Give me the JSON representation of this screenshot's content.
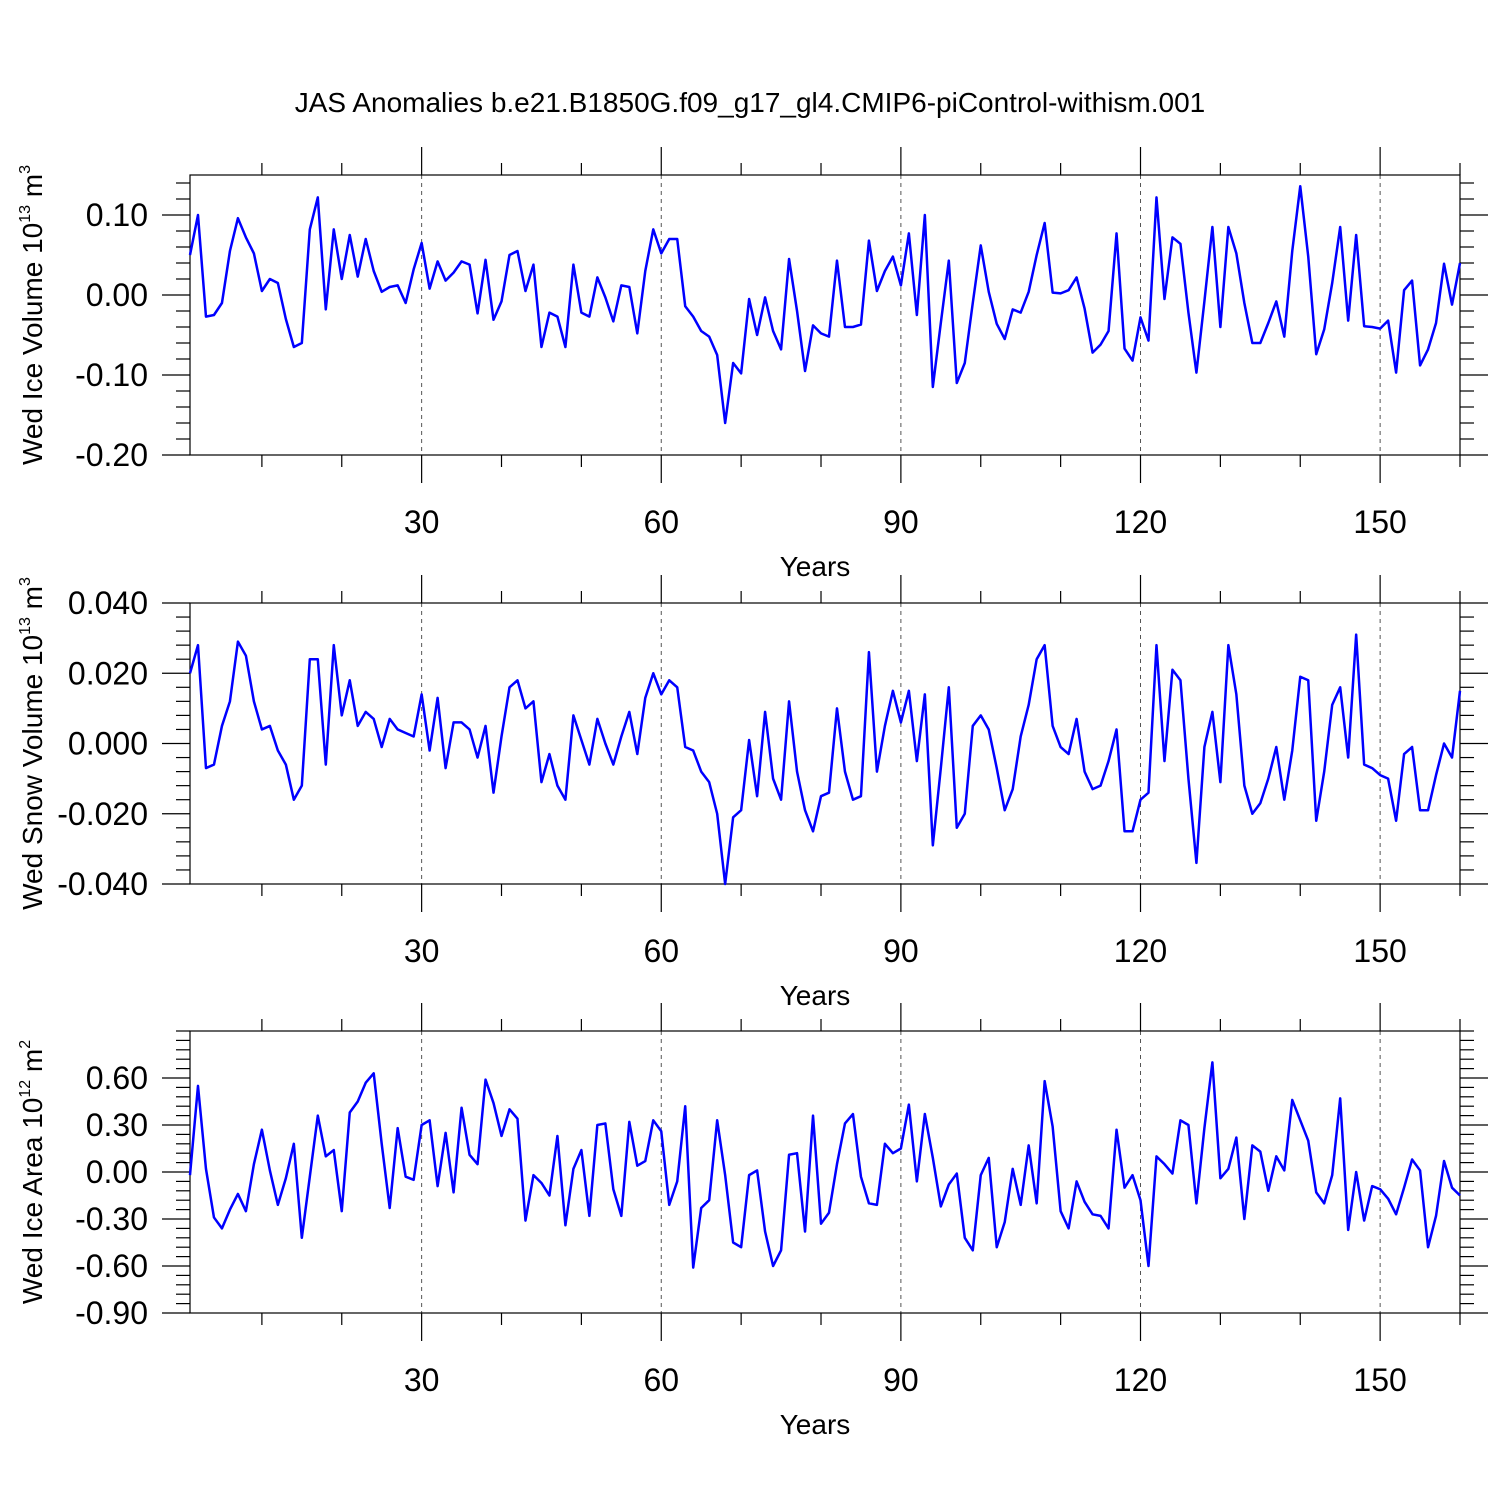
{
  "title": "JAS Anomalies b.e21.B1850G.f09_g17_gl4.CMIP6-piControl-withism.001",
  "chart_data": [
    {
      "type": "line",
      "name": "ice-volume",
      "ylabel_main": "Wed Ice Volume 10",
      "ylabel_exp": "13",
      "ylabel_unit": " m",
      "ylabel_unit_exp": "3",
      "xlabel": "Years",
      "xlim": [
        1,
        160
      ],
      "ylim": [
        -0.2,
        0.15
      ],
      "xticks": [
        30,
        60,
        90,
        120,
        150
      ],
      "xtick_labels": [
        "30",
        "60",
        "90",
        "120",
        "150"
      ],
      "yticks": [
        -0.2,
        -0.1,
        0.0,
        0.1
      ],
      "ytick_labels": [
        "-0.20",
        "-0.10",
        "0.00",
        "0.10"
      ],
      "color": "#0000ff",
      "x_start": 1,
      "values": [
        0.05,
        0.1,
        -0.027,
        -0.025,
        -0.01,
        0.055,
        0.096,
        0.072,
        0.052,
        0.005,
        0.02,
        0.015,
        -0.03,
        -0.065,
        -0.06,
        0.082,
        0.122,
        -0.018,
        0.082,
        0.02,
        0.075,
        0.023,
        0.07,
        0.03,
        0.004,
        0.01,
        0.012,
        -0.01,
        0.032,
        0.065,
        0.008,
        0.042,
        0.018,
        0.028,
        0.042,
        0.038,
        -0.023,
        0.044,
        -0.031,
        -0.008,
        0.05,
        0.055,
        0.005,
        0.038,
        -0.065,
        -0.022,
        -0.027,
        -0.065,
        0.038,
        -0.022,
        -0.027,
        0.022,
        -0.003,
        -0.033,
        0.012,
        0.01,
        -0.048,
        0.03,
        0.082,
        0.052,
        0.07,
        0.07,
        -0.014,
        -0.027,
        -0.045,
        -0.052,
        -0.075,
        -0.16,
        -0.085,
        -0.098,
        -0.005,
        -0.05,
        -0.003,
        -0.045,
        -0.068,
        0.045,
        -0.02,
        -0.095,
        -0.038,
        -0.048,
        -0.052,
        0.043,
        -0.04,
        -0.04,
        -0.037,
        0.068,
        0.005,
        0.03,
        0.048,
        0.012,
        0.077,
        -0.025,
        0.1,
        -0.115,
        -0.035,
        0.043,
        -0.11,
        -0.085,
        -0.01,
        0.062,
        0.004,
        -0.036,
        -0.055,
        -0.018,
        -0.022,
        0.004,
        0.05,
        0.09,
        0.003,
        0.002,
        0.006,
        0.022,
        -0.017,
        -0.072,
        -0.062,
        -0.045,
        0.077,
        -0.067,
        -0.082,
        -0.028,
        -0.057,
        0.122,
        -0.005,
        0.072,
        0.064,
        -0.022,
        -0.097,
        -0.008,
        0.085,
        -0.04,
        0.085,
        0.052,
        -0.01,
        -0.06,
        -0.06,
        -0.035,
        -0.008,
        -0.052,
        0.055,
        0.136,
        0.048,
        -0.074,
        -0.043,
        0.015,
        0.085,
        -0.032,
        0.075,
        -0.039,
        -0.04,
        -0.042,
        -0.032,
        -0.097,
        0.006,
        0.018,
        -0.088,
        -0.068,
        -0.035,
        0.039,
        -0.012,
        0.04
      ]
    },
    {
      "type": "line",
      "name": "snow-volume",
      "ylabel_main": "Wed Snow Volume 10",
      "ylabel_exp": "13",
      "ylabel_unit": " m",
      "ylabel_unit_exp": "3",
      "xlabel": "Years",
      "xlim": [
        1,
        160
      ],
      "ylim": [
        -0.04,
        0.04
      ],
      "xticks": [
        30,
        60,
        90,
        120,
        150
      ],
      "xtick_labels": [
        "30",
        "60",
        "90",
        "120",
        "150"
      ],
      "yticks": [
        -0.04,
        -0.02,
        0.0,
        0.02,
        0.04
      ],
      "ytick_labels": [
        "-0.040",
        "-0.020",
        "0.000",
        "0.020",
        "0.040"
      ],
      "color": "#0000ff",
      "x_start": 1,
      "values": [
        0.02,
        0.028,
        -0.007,
        -0.006,
        0.005,
        0.012,
        0.029,
        0.025,
        0.012,
        0.004,
        0.005,
        -0.002,
        -0.006,
        -0.016,
        -0.012,
        0.024,
        0.024,
        -0.006,
        0.028,
        0.008,
        0.018,
        0.005,
        0.009,
        0.007,
        -0.001,
        0.007,
        0.004,
        0.003,
        0.002,
        0.014,
        -0.002,
        0.013,
        -0.007,
        0.006,
        0.006,
        0.004,
        -0.004,
        0.005,
        -0.014,
        0.002,
        0.016,
        0.018,
        0.01,
        0.012,
        -0.011,
        -0.003,
        -0.012,
        -0.016,
        0.008,
        0.001,
        -0.006,
        0.007,
        0.0,
        -0.006,
        0.002,
        0.009,
        -0.003,
        0.013,
        0.02,
        0.014,
        0.018,
        0.016,
        -0.001,
        -0.002,
        -0.008,
        -0.011,
        -0.02,
        -0.04,
        -0.021,
        -0.019,
        0.001,
        -0.015,
        0.009,
        -0.01,
        -0.016,
        0.012,
        -0.008,
        -0.019,
        -0.025,
        -0.015,
        -0.014,
        0.01,
        -0.008,
        -0.016,
        -0.015,
        0.026,
        -0.008,
        0.005,
        0.015,
        0.006,
        0.015,
        -0.005,
        0.014,
        -0.029,
        -0.007,
        0.016,
        -0.024,
        -0.02,
        0.005,
        0.008,
        0.004,
        -0.007,
        -0.019,
        -0.013,
        0.002,
        0.011,
        0.024,
        0.028,
        0.005,
        -0.001,
        -0.003,
        0.007,
        -0.008,
        -0.013,
        -0.012,
        -0.005,
        0.004,
        -0.025,
        -0.025,
        -0.016,
        -0.014,
        0.028,
        -0.005,
        0.021,
        0.018,
        -0.01,
        -0.034,
        -0.001,
        0.009,
        -0.011,
        0.028,
        0.014,
        -0.012,
        -0.02,
        -0.017,
        -0.01,
        -0.001,
        -0.016,
        -0.002,
        0.019,
        0.018,
        -0.022,
        -0.008,
        0.011,
        0.016,
        -0.004,
        0.031,
        -0.006,
        -0.007,
        -0.009,
        -0.01,
        -0.022,
        -0.003,
        -0.001,
        -0.019,
        -0.019,
        -0.009,
        0.0,
        -0.004,
        0.015
      ]
    },
    {
      "type": "line",
      "name": "ice-area",
      "ylabel_main": "Wed Ice Area 10",
      "ylabel_exp": "12",
      "ylabel_unit": " m",
      "ylabel_unit_exp": "2",
      "xlabel": "Years",
      "xlim": [
        1,
        160
      ],
      "ylim": [
        -0.9,
        0.9
      ],
      "xticks": [
        30,
        60,
        90,
        120,
        150
      ],
      "xtick_labels": [
        "30",
        "60",
        "90",
        "120",
        "150"
      ],
      "yticks": [
        -0.9,
        -0.6,
        -0.3,
        0.0,
        0.3,
        0.6
      ],
      "ytick_labels": [
        "-0.90",
        "-0.60",
        "-0.30",
        "0.00",
        "0.30",
        "0.60"
      ],
      "color": "#0000ff",
      "x_start": 1,
      "values": [
        -0.02,
        0.55,
        0.02,
        -0.29,
        -0.36,
        -0.24,
        -0.14,
        -0.25,
        0.05,
        0.27,
        0.01,
        -0.21,
        -0.04,
        0.18,
        -0.42,
        -0.03,
        0.36,
        0.1,
        0.14,
        -0.25,
        0.38,
        0.45,
        0.57,
        0.63,
        0.18,
        -0.23,
        0.28,
        -0.03,
        -0.05,
        0.3,
        0.33,
        -0.09,
        0.25,
        -0.13,
        0.41,
        0.11,
        0.05,
        0.59,
        0.44,
        0.23,
        0.4,
        0.34,
        -0.31,
        -0.02,
        -0.07,
        -0.15,
        0.23,
        -0.34,
        0.02,
        0.14,
        -0.28,
        0.3,
        0.31,
        -0.11,
        -0.28,
        0.32,
        0.04,
        0.07,
        0.33,
        0.26,
        -0.21,
        -0.06,
        0.42,
        -0.61,
        -0.23,
        -0.18,
        0.33,
        -0.02,
        -0.45,
        -0.48,
        -0.02,
        0.01,
        -0.38,
        -0.6,
        -0.5,
        0.11,
        0.12,
        -0.38,
        0.36,
        -0.33,
        -0.26,
        0.05,
        0.31,
        0.37,
        -0.03,
        -0.2,
        -0.21,
        0.18,
        0.12,
        0.15,
        0.43,
        -0.06,
        0.37,
        0.09,
        -0.22,
        -0.08,
        -0.01,
        -0.42,
        -0.5,
        -0.02,
        0.09,
        -0.48,
        -0.32,
        0.02,
        -0.21,
        0.17,
        -0.2,
        0.58,
        0.29,
        -0.25,
        -0.36,
        -0.06,
        -0.19,
        -0.27,
        -0.28,
        -0.36,
        0.27,
        -0.1,
        -0.02,
        -0.18,
        -0.6,
        0.1,
        0.05,
        -0.01,
        0.33,
        0.3,
        -0.2,
        0.28,
        0.7,
        -0.04,
        0.02,
        0.22,
        -0.3,
        0.17,
        0.13,
        -0.12,
        0.1,
        0.01,
        0.46,
        0.33,
        0.2,
        -0.13,
        -0.2,
        -0.02,
        0.47,
        -0.37,
        0.0,
        -0.31,
        -0.09,
        -0.11,
        -0.17,
        -0.27,
        -0.1,
        0.08,
        0.01,
        -0.48,
        -0.28,
        0.07,
        -0.1,
        -0.15
      ]
    }
  ]
}
